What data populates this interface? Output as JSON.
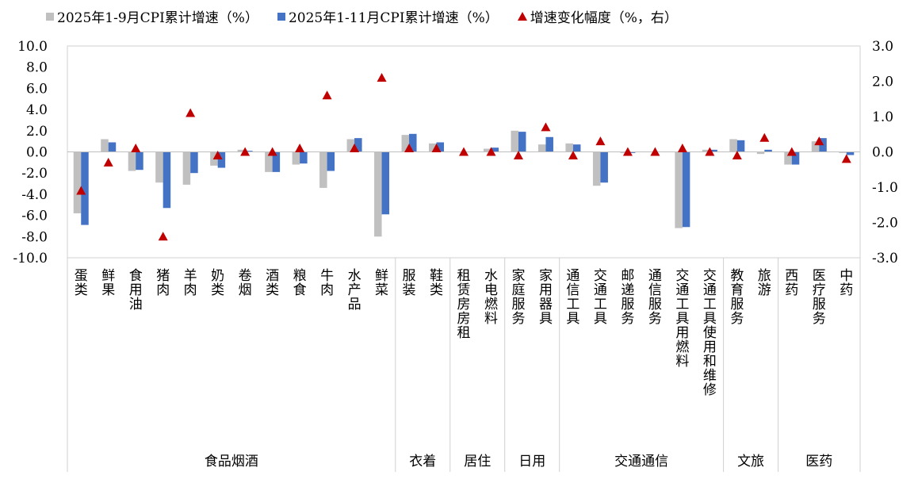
{
  "legend": {
    "s1": "2025年1-9月CPI累计增速（%）",
    "s2": "2025年1-11月CPI累计增速（%）",
    "s3": "增速变化幅度（%，右）"
  },
  "colors": {
    "s1": "#c0c0c0",
    "s2": "#4472c4",
    "s3": "#c00000"
  },
  "chart_data": {
    "type": "bar",
    "categories": [
      "蛋类",
      "鲜果",
      "食用油",
      "猪肉",
      "羊肉",
      "奶类",
      "卷烟",
      "酒类",
      "粮食",
      "牛肉",
      "水产品",
      "鲜菜",
      "服装",
      "鞋类",
      "租赁房房租",
      "水电燃料",
      "家庭服务",
      "家用器具",
      "通信工具",
      "交通工具",
      "邮递服务",
      "通信服务",
      "交通工具用燃料",
      "交通工具使用和维修",
      "教育服务",
      "旅游",
      "西药",
      "医疗服务",
      "中药"
    ],
    "groups": [
      {
        "label": "食品烟酒",
        "count": 12
      },
      {
        "label": "衣着",
        "count": 2
      },
      {
        "label": "居住",
        "count": 2
      },
      {
        "label": "日用",
        "count": 2
      },
      {
        "label": "交通通信",
        "count": 6
      },
      {
        "label": "文旅",
        "count": 2
      },
      {
        "label": "医药",
        "count": 3
      }
    ],
    "series": [
      {
        "name": "2025年1-9月CPI累计增速（%）",
        "type": "bar",
        "axis": "left",
        "values": [
          -5.8,
          1.2,
          -1.8,
          -2.9,
          -3.1,
          -1.3,
          0.2,
          -1.9,
          -1.2,
          -3.4,
          1.2,
          -8.0,
          1.6,
          0.8,
          0.0,
          0.3,
          2.0,
          0.7,
          0.8,
          -3.2,
          -0.1,
          0.0,
          -7.2,
          0.2,
          1.2,
          -0.2,
          -1.2,
          1.0,
          -0.1
        ]
      },
      {
        "name": "2025年1-11月CPI累计增速（%）",
        "type": "bar",
        "axis": "left",
        "values": [
          -6.9,
          0.9,
          -1.7,
          -5.3,
          -2.0,
          -1.5,
          0.1,
          -1.9,
          -1.1,
          -1.8,
          1.3,
          -5.9,
          1.7,
          0.9,
          0.0,
          0.4,
          1.9,
          1.4,
          0.7,
          -2.9,
          -0.1,
          0.0,
          -7.1,
          0.2,
          1.1,
          0.2,
          -1.2,
          1.3,
          -0.3
        ]
      },
      {
        "name": "增速变化幅度（%，右）",
        "type": "scatter",
        "axis": "right",
        "values": [
          -1.1,
          -0.3,
          0.1,
          -2.4,
          1.1,
          -0.1,
          0.0,
          0.0,
          0.1,
          1.6,
          0.1,
          2.1,
          0.1,
          0.1,
          0.0,
          0.0,
          -0.1,
          0.7,
          -0.1,
          0.3,
          0.0,
          0.0,
          0.1,
          0.0,
          -0.1,
          0.4,
          0.0,
          0.3,
          -0.2
        ]
      }
    ],
    "y_left": {
      "min": -10,
      "max": 10,
      "step": 2,
      "ticks": [
        "10.0",
        "8.0",
        "6.0",
        "4.0",
        "2.0",
        "0.0",
        "-2.0",
        "-4.0",
        "-6.0",
        "-8.0",
        "-10.0"
      ]
    },
    "y_right": {
      "min": -3,
      "max": 3,
      "step": 1,
      "ticks": [
        "3.0",
        "2.0",
        "1.0",
        "0.0",
        "-1.0",
        "-2.0",
        "-3.0"
      ]
    },
    "grid": false,
    "legend_position": "top"
  }
}
